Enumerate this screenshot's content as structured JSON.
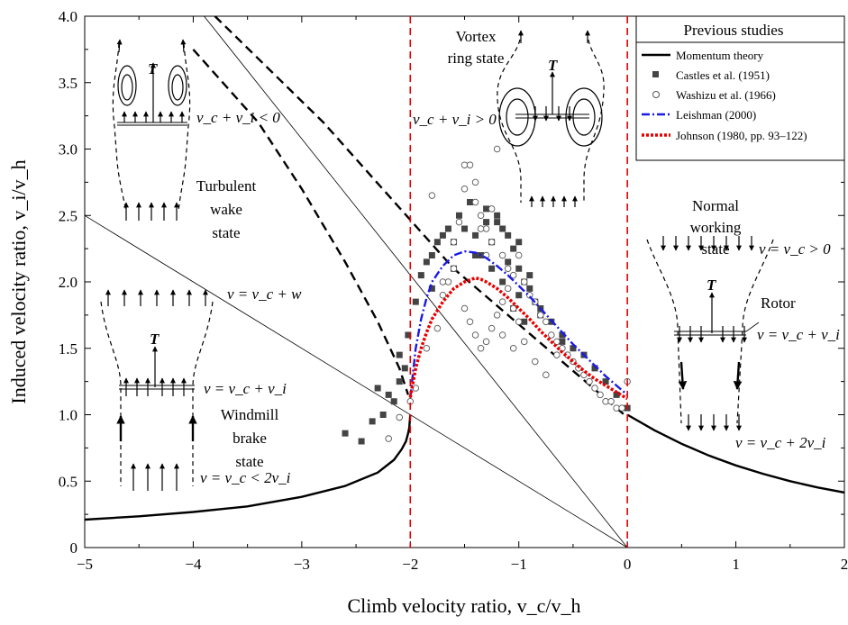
{
  "chart_data": {
    "type": "line",
    "title": "",
    "xlabel": "Climb velocity ratio, v_c/v_h",
    "ylabel": "Induced velocity ratio, v_i/v_h",
    "xlim": [
      -5,
      2
    ],
    "ylim": [
      0,
      4
    ],
    "x_ticks": [
      "−5",
      "−4",
      "−3",
      "−2",
      "−1",
      "0",
      "1",
      "2"
    ],
    "y_ticks": [
      "0",
      "0.5",
      "1.0",
      "1.5",
      "2.0",
      "2.5",
      "3.0",
      "3.5",
      "4.0"
    ],
    "grid": false,
    "legend": {
      "position": "top-right",
      "title": "Previous studies",
      "entries": [
        {
          "label": "Momentum theory",
          "style": "solid-line",
          "color": "#000000"
        },
        {
          "label": "Castles et al. (1951)",
          "style": "filled-square",
          "color": "#444444"
        },
        {
          "label": "Washizu et al. (1966)",
          "style": "open-circle",
          "color": "#555555"
        },
        {
          "label": "Leishman (2000)",
          "style": "dash-dot-line",
          "color": "#1a1ae6"
        },
        {
          "label": "Johnson (1980, pp. 93–122)",
          "style": "dotted-line",
          "color": "#e60000"
        }
      ]
    },
    "region_labels": [
      {
        "lines": [
          "Vortex",
          "ring state"
        ]
      },
      {
        "lines": [
          "Turbulent",
          "wake",
          "state"
        ]
      },
      {
        "lines": [
          "Normal",
          "working",
          "state"
        ]
      },
      {
        "lines": [
          "Windmill",
          "brake",
          "state"
        ]
      },
      {
        "lines": [
          "Rotor"
        ]
      },
      {
        "lines": [
          "T"
        ]
      }
    ],
    "equations": [
      "v_c + v_i < 0",
      "v_c + v_i > 0",
      "v = v_c + w",
      "v = v_c + v_i",
      "v = v_c < 2v_i",
      "v = v_c > 0",
      "v = v_c + v_i",
      "v = v_c + 2v_i"
    ],
    "boundaries_x": [
      -2,
      0
    ],
    "reference_lines": [
      {
        "name": "thin-line-a",
        "points": [
          [
            -5,
            2.5
          ],
          [
            0,
            0
          ]
        ]
      },
      {
        "name": "thin-line-b",
        "points": [
          [
            -3.9,
            4.0
          ],
          [
            0,
            0
          ]
        ]
      },
      {
        "name": "dashed-line-upper",
        "points": [
          [
            -3.8,
            4.0
          ],
          [
            -2.8,
            3.2
          ],
          [
            -1.6,
            2.1
          ],
          [
            0,
            0.98
          ]
        ]
      },
      {
        "name": "dashed-line-lower",
        "points": [
          [
            -4,
            3.75
          ],
          [
            -3.4,
            3.2
          ],
          [
            -3.0,
            2.7
          ],
          [
            -2.6,
            2.15
          ],
          [
            -2.3,
            1.7
          ],
          [
            -2.1,
            1.35
          ],
          [
            -2.02,
            1.15
          ]
        ]
      }
    ],
    "series": [
      {
        "name": "Momentum theory",
        "type": "line",
        "color": "#000000",
        "segments": [
          {
            "x": [
              -5.0,
              -4.5,
              -4.0,
              -3.5,
              -3.0,
              -2.6,
              -2.3,
              -2.15,
              -2.08,
              -2.04,
              -2.02,
              -2.01,
              -2.0
            ],
            "y": [
              0.21,
              0.235,
              0.268,
              0.31,
              0.382,
              0.464,
              0.565,
              0.66,
              0.74,
              0.8,
              0.86,
              0.9,
              1.0
            ]
          },
          {
            "x": [
              0.0,
              0.25,
              0.5,
              0.75,
              1.0,
              1.25,
              1.5,
              1.75,
              2.0
            ],
            "y": [
              1.0,
              0.883,
              0.781,
              0.693,
              0.618,
              0.555,
              0.5,
              0.453,
              0.414
            ]
          }
        ]
      },
      {
        "name": "Castles et al. (1951)",
        "type": "scatter",
        "x": [
          -2.6,
          -2.45,
          -2.35,
          -2.25,
          -2.2,
          -2.15,
          -2.1,
          -2.05,
          -2.02,
          -1.95,
          -1.9,
          -1.85,
          -1.8,
          -1.75,
          -1.7,
          -1.65,
          -1.6,
          -1.55,
          -1.5,
          -1.45,
          -1.4,
          -1.35,
          -1.3,
          -1.25,
          -1.2,
          -1.15,
          -1.1,
          -1.05,
          -1.0,
          -0.95,
          -0.9,
          -0.85,
          -0.8,
          -0.7,
          -0.6,
          -0.5,
          -0.4,
          -0.3,
          -0.2,
          -0.1,
          0.0,
          -1.3,
          -1.2,
          -1.1,
          -1.0,
          -0.9,
          -1.4,
          -1.6,
          -1.8,
          -1.0,
          -0.8,
          -0.6,
          -1.15,
          -1.05,
          -0.95,
          -1.25,
          -2.3,
          -2.1
        ],
        "y": [
          0.86,
          0.8,
          0.95,
          1.0,
          1.15,
          1.1,
          1.25,
          1.35,
          1.6,
          1.85,
          2.05,
          2.15,
          2.2,
          2.3,
          2.35,
          2.4,
          2.3,
          2.5,
          2.4,
          2.6,
          2.35,
          2.2,
          2.45,
          2.3,
          2.5,
          2.4,
          2.35,
          2.25,
          2.1,
          2.0,
          1.95,
          1.85,
          1.8,
          1.7,
          1.6,
          1.5,
          1.45,
          1.35,
          1.25,
          1.15,
          1.05,
          2.55,
          2.45,
          2.15,
          2.3,
          2.05,
          2.2,
          2.1,
          1.95,
          1.9,
          1.75,
          1.55,
          2.0,
          1.8,
          1.7,
          2.1,
          1.2,
          1.45
        ]
      },
      {
        "name": "Washizu et al. (1966)",
        "type": "scatter",
        "x": [
          -2.1,
          -1.95,
          -1.85,
          -1.75,
          -1.7,
          -1.65,
          -1.6,
          -1.55,
          -1.5,
          -1.45,
          -1.4,
          -1.35,
          -1.3,
          -1.25,
          -1.2,
          -1.15,
          -1.1,
          -1.05,
          -1.0,
          -0.95,
          -0.9,
          -0.85,
          -0.8,
          -0.75,
          -0.7,
          -0.65,
          -0.6,
          -0.55,
          -0.5,
          -0.45,
          -0.4,
          -0.35,
          -0.3,
          -0.25,
          -0.2,
          -0.15,
          -0.1,
          -0.05,
          0.0,
          -1.5,
          -1.45,
          -1.4,
          -1.35,
          -1.3,
          -1.25,
          -1.2,
          -1.15,
          -1.1,
          -1.05,
          -1.0,
          -1.6,
          -1.7,
          -1.35,
          -1.3,
          -1.25,
          -2.2,
          -2.0,
          -1.8,
          -1.15,
          -1.05,
          -0.95,
          -0.85,
          -0.75,
          -0.65,
          -1.4,
          -1.5
        ],
        "y": [
          0.98,
          1.2,
          1.5,
          1.65,
          1.9,
          2.0,
          2.3,
          2.45,
          2.88,
          2.88,
          2.75,
          2.5,
          2.4,
          2.3,
          3.0,
          2.2,
          2.1,
          2.05,
          2.2,
          2.0,
          1.9,
          1.85,
          1.75,
          1.7,
          1.6,
          1.55,
          1.5,
          1.45,
          1.4,
          1.35,
          1.3,
          1.25,
          1.2,
          1.15,
          1.1,
          1.1,
          1.05,
          1.05,
          1.25,
          1.8,
          1.7,
          1.6,
          1.5,
          1.55,
          1.65,
          1.75,
          1.85,
          1.95,
          1.8,
          1.7,
          2.1,
          2.0,
          2.4,
          2.2,
          2.55,
          0.82,
          1.1,
          2.65,
          1.6,
          1.5,
          1.55,
          1.4,
          1.3,
          1.45,
          2.6,
          2.7
        ]
      },
      {
        "name": "Leishman (2000)",
        "type": "line",
        "color": "#1a1ae6",
        "x": [
          -2.0,
          -1.95,
          -1.9,
          -1.85,
          -1.8,
          -1.7,
          -1.6,
          -1.5,
          -1.4,
          -1.3,
          -1.2,
          -1.1,
          -1.0,
          -0.9,
          -0.8,
          -0.7,
          -0.6,
          -0.5,
          -0.4,
          -0.3,
          -0.2,
          -0.1,
          0.0
        ],
        "y": [
          1.13,
          1.5,
          1.72,
          1.88,
          2.0,
          2.12,
          2.2,
          2.23,
          2.22,
          2.18,
          2.12,
          2.05,
          1.97,
          1.89,
          1.8,
          1.71,
          1.62,
          1.53,
          1.45,
          1.37,
          1.29,
          1.22,
          1.15
        ]
      },
      {
        "name": "Johnson (1980, pp. 93–122)",
        "type": "line",
        "color": "#e60000",
        "x": [
          -2.0,
          -1.95,
          -1.9,
          -1.85,
          -1.8,
          -1.7,
          -1.6,
          -1.5,
          -1.4,
          -1.35,
          -1.3,
          -1.2,
          -1.1,
          -1.0,
          -0.9,
          -0.8,
          -0.7,
          -0.6,
          -0.5,
          -0.4,
          -0.3,
          -0.2,
          -0.1,
          0.0
        ],
        "y": [
          1.13,
          1.35,
          1.5,
          1.62,
          1.72,
          1.85,
          1.95,
          2.0,
          2.03,
          2.02,
          2.0,
          1.95,
          1.88,
          1.8,
          1.72,
          1.63,
          1.55,
          1.47,
          1.4,
          1.33,
          1.27,
          1.22,
          1.17,
          1.12
        ]
      }
    ]
  }
}
